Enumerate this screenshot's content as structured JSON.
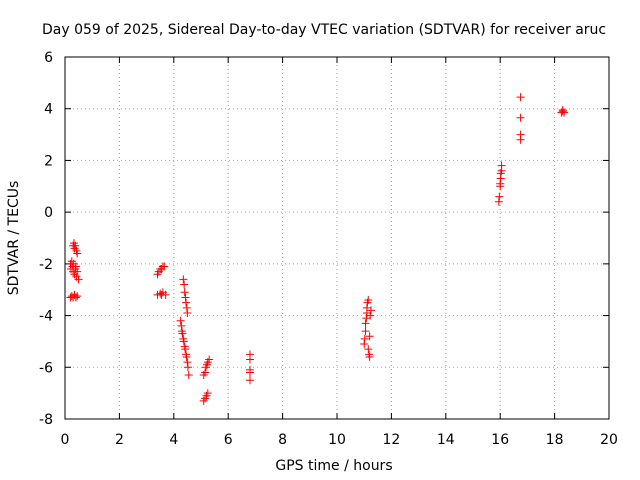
{
  "chart_data": {
    "type": "scatter",
    "title": "Day 059 of 2025, Sidereal Day-to-day VTEC variation (SDTVAR) for receiver aruc",
    "xlabel": "GPS time / hours",
    "ylabel": "SDTVAR / TECUs",
    "xlim": [
      0,
      20
    ],
    "ylim": [
      -8,
      6
    ],
    "x_ticks": [
      "0",
      "2",
      "4",
      "6",
      "8",
      "10",
      "12",
      "14",
      "16",
      "18",
      "20"
    ],
    "y_ticks": [
      "-8",
      "-6",
      "-4",
      "-2",
      "0",
      "2",
      "4",
      "6"
    ],
    "grid": true,
    "marker": "+",
    "color": "#ff0000",
    "series": [
      {
        "name": "SDTVAR",
        "points": [
          [
            0.2,
            -3.3
          ],
          [
            0.25,
            -3.25
          ],
          [
            0.3,
            -3.3
          ],
          [
            0.35,
            -3.2
          ],
          [
            0.4,
            -3.3
          ],
          [
            0.45,
            -3.25
          ],
          [
            0.2,
            -2.0
          ],
          [
            0.22,
            -2.2
          ],
          [
            0.25,
            -1.9
          ],
          [
            0.28,
            -2.1
          ],
          [
            0.3,
            -2.3
          ],
          [
            0.32,
            -2.0
          ],
          [
            0.35,
            -2.4
          ],
          [
            0.38,
            -2.2
          ],
          [
            0.4,
            -2.1
          ],
          [
            0.42,
            -2.5
          ],
          [
            0.45,
            -2.3
          ],
          [
            0.5,
            -2.6
          ],
          [
            0.3,
            -1.3
          ],
          [
            0.33,
            -1.2
          ],
          [
            0.35,
            -1.4
          ],
          [
            0.38,
            -1.3
          ],
          [
            0.42,
            -1.5
          ],
          [
            0.45,
            -1.6
          ],
          [
            3.4,
            -3.2
          ],
          [
            3.5,
            -3.15
          ],
          [
            3.55,
            -3.2
          ],
          [
            3.6,
            -3.1
          ],
          [
            3.7,
            -3.2
          ],
          [
            3.4,
            -2.4
          ],
          [
            3.45,
            -2.3
          ],
          [
            3.5,
            -2.2
          ],
          [
            3.55,
            -2.2
          ],
          [
            3.6,
            -2.1
          ],
          [
            3.65,
            -2.1
          ],
          [
            4.25,
            -4.2
          ],
          [
            4.28,
            -4.4
          ],
          [
            4.3,
            -4.6
          ],
          [
            4.32,
            -4.7
          ],
          [
            4.35,
            -4.9
          ],
          [
            4.37,
            -5.0
          ],
          [
            4.4,
            -5.2
          ],
          [
            4.42,
            -5.3
          ],
          [
            4.45,
            -5.5
          ],
          [
            4.47,
            -5.6
          ],
          [
            4.5,
            -5.8
          ],
          [
            4.52,
            -6.0
          ],
          [
            4.55,
            -6.3
          ],
          [
            4.35,
            -2.6
          ],
          [
            4.38,
            -2.8
          ],
          [
            4.4,
            -3.1
          ],
          [
            4.43,
            -3.3
          ],
          [
            4.45,
            -3.5
          ],
          [
            4.48,
            -3.7
          ],
          [
            4.5,
            -3.9
          ],
          [
            5.1,
            -7.3
          ],
          [
            5.15,
            -7.2
          ],
          [
            5.2,
            -7.1
          ],
          [
            5.25,
            -7.0
          ],
          [
            5.1,
            -6.3
          ],
          [
            5.15,
            -6.2
          ],
          [
            5.18,
            -6.0
          ],
          [
            5.22,
            -5.9
          ],
          [
            5.25,
            -5.8
          ],
          [
            5.3,
            -5.7
          ],
          [
            6.8,
            -5.5
          ],
          [
            6.8,
            -5.7
          ],
          [
            6.8,
            -6.1
          ],
          [
            6.8,
            -6.2
          ],
          [
            6.8,
            -6.5
          ],
          [
            11.0,
            -5.1
          ],
          [
            11.02,
            -4.9
          ],
          [
            11.05,
            -4.6
          ],
          [
            11.05,
            -4.3
          ],
          [
            11.08,
            -4.1
          ],
          [
            11.1,
            -3.9
          ],
          [
            11.1,
            -3.7
          ],
          [
            11.12,
            -3.5
          ],
          [
            11.15,
            -3.4
          ],
          [
            11.15,
            -5.3
          ],
          [
            11.18,
            -5.5
          ],
          [
            11.2,
            -5.6
          ],
          [
            11.2,
            -4.8
          ],
          [
            11.22,
            -4.0
          ],
          [
            11.25,
            -3.8
          ],
          [
            15.95,
            0.4
          ],
          [
            15.97,
            0.6
          ],
          [
            16.0,
            1.0
          ],
          [
            16.0,
            1.1
          ],
          [
            16.02,
            1.3
          ],
          [
            16.02,
            1.5
          ],
          [
            16.05,
            1.6
          ],
          [
            16.05,
            1.8
          ],
          [
            16.75,
            4.45
          ],
          [
            16.75,
            3.65
          ],
          [
            16.75,
            3.0
          ],
          [
            16.75,
            2.8
          ],
          [
            18.25,
            3.85
          ],
          [
            18.3,
            3.9
          ],
          [
            18.35,
            3.85
          ],
          [
            18.3,
            3.95
          ]
        ]
      }
    ]
  }
}
